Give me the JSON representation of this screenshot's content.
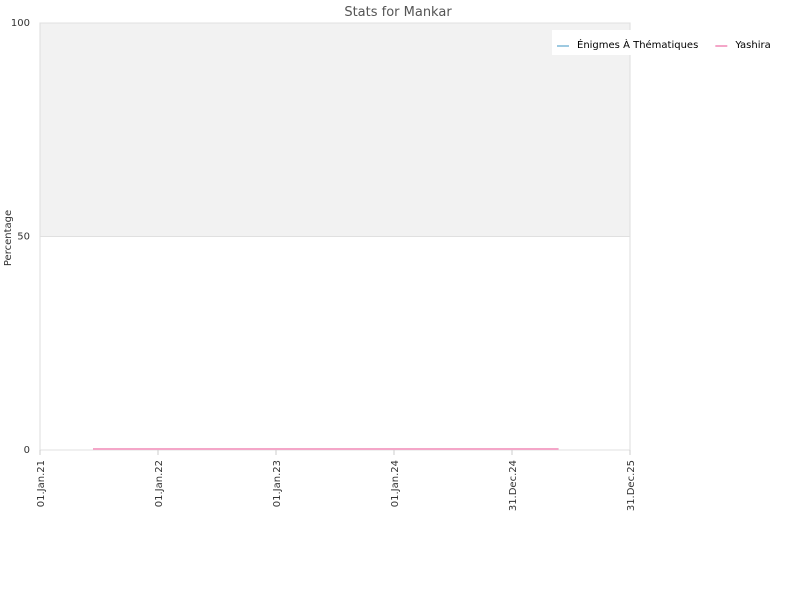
{
  "chart_data": {
    "type": "line",
    "title": "Stats for Mankar",
    "y_label": "Percentage",
    "x": [
      "2021-06-14",
      "2025-05-24"
    ],
    "series": [
      {
        "name": "Énigmes À Thématiques",
        "color": "#9ecae1",
        "values": [
          0,
          0
        ]
      },
      {
        "name": "Yashira",
        "color": "#f4a6c8",
        "values": [
          0,
          0
        ]
      }
    ],
    "xlim": [
      "2021-01-01",
      "2025-12-31"
    ],
    "xticks": [
      {
        "value": "2021-01-01",
        "label": "01.Jan.21"
      },
      {
        "value": "2022-01-01",
        "label": "01.Jan.22"
      },
      {
        "value": "2023-01-01",
        "label": "01.Jan.23"
      },
      {
        "value": "2024-01-01",
        "label": "01.Jan.24"
      },
      {
        "value": "2024-12-31",
        "label": "31.Dec.24"
      },
      {
        "value": "2025-12-31",
        "label": "31.Dec.25"
      }
    ],
    "ylim": [
      0,
      100
    ],
    "yticks": [
      0,
      50,
      100
    ],
    "grid": true,
    "legend": "top-right"
  }
}
